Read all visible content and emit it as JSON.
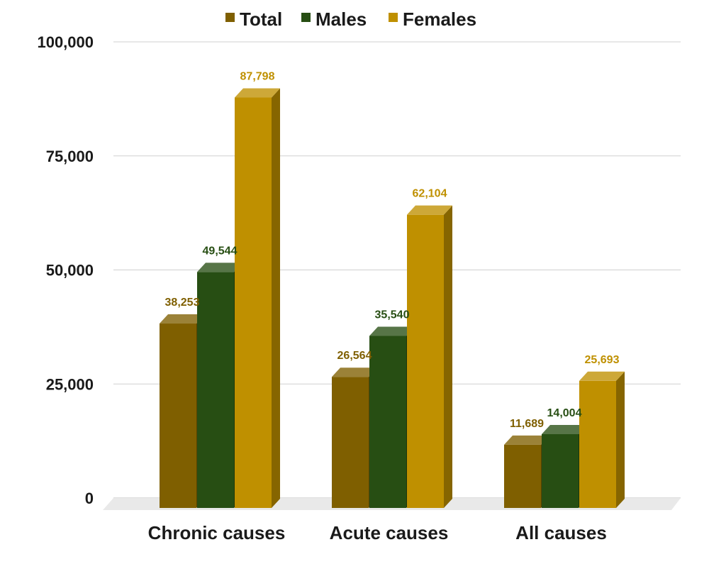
{
  "chart_data": {
    "type": "bar",
    "title": "",
    "xlabel": "",
    "ylabel": "",
    "categories": [
      "Chronic causes",
      "Acute causes",
      "All causes"
    ],
    "series": [
      {
        "name": "Total",
        "values": [
          38253,
          26564,
          11689
        ],
        "color": "#7f5f00"
      },
      {
        "name": "Males",
        "values": [
          49544,
          35540,
          14004
        ],
        "color": "#274e13"
      },
      {
        "name": "Females",
        "values": [
          87798,
          62104,
          25693
        ],
        "color": "#bf9000"
      }
    ],
    "ylim": [
      0,
      100000
    ],
    "yticks": [
      0,
      25000,
      50000,
      75000,
      100000
    ],
    "ytick_labels": [
      "0",
      "25,000",
      "50,000",
      "75,000",
      "100,000"
    ],
    "value_labels": [
      [
        "38,253",
        "26,564",
        "11,689"
      ],
      [
        "49,544",
        "35,540",
        "14,004"
      ],
      [
        "87,798",
        "62,104",
        "25,693"
      ]
    ],
    "legend": "top",
    "grid": true,
    "style": "3d-bar"
  }
}
